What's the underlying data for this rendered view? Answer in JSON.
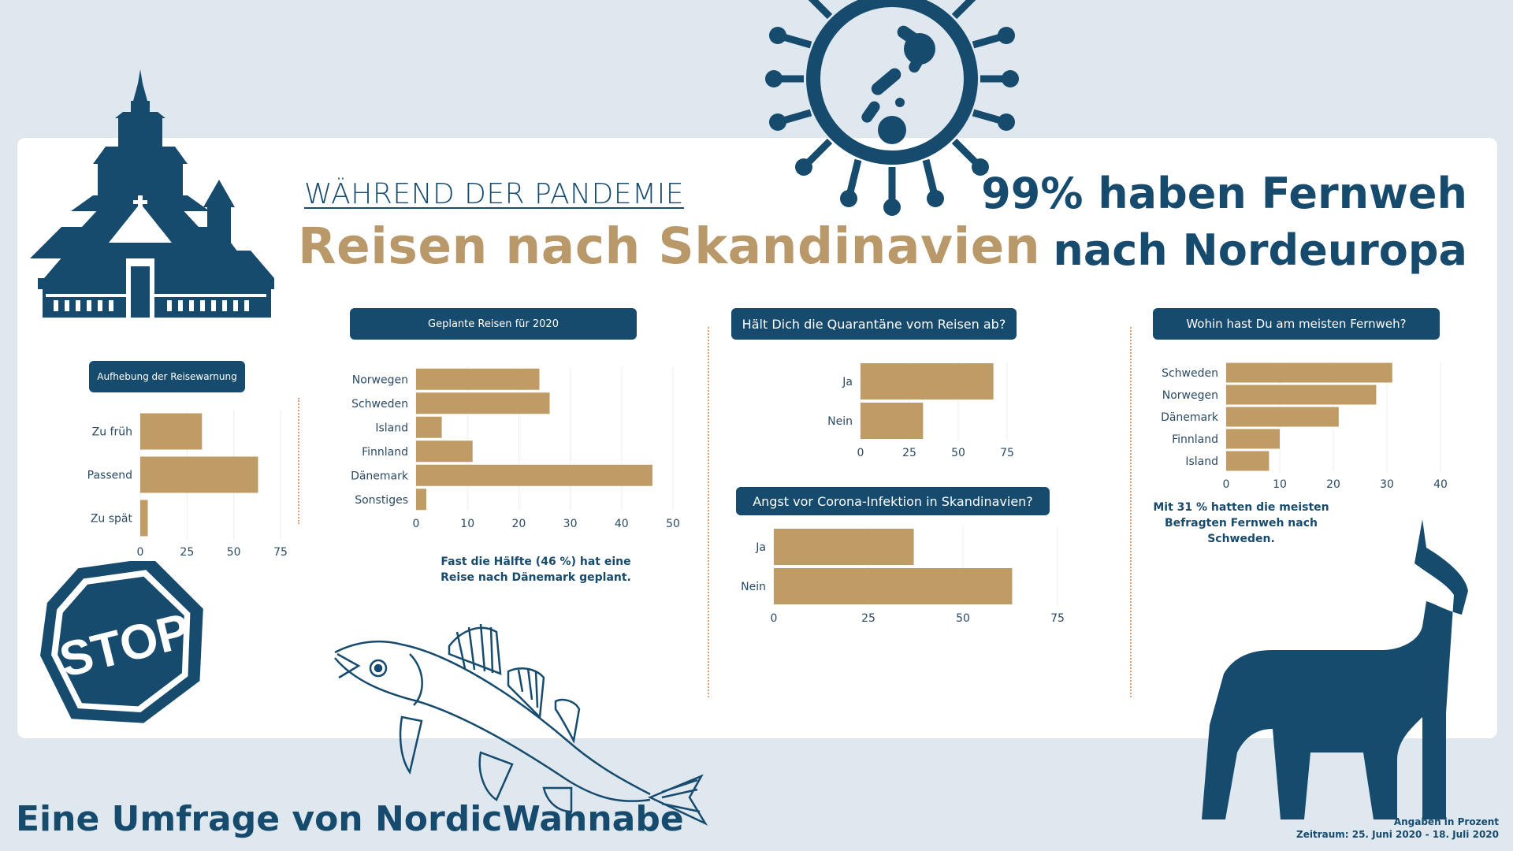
{
  "header": {
    "subtitle": "WÄHREND DER PANDEMIE",
    "title": "Reisen nach Skandinavien",
    "headline_line1": "99% haben Fernweh",
    "headline_line2": "nach Nordeuropa"
  },
  "footer": {
    "credit": "Eine Umfrage von NordicWannabe",
    "unit_note": "Angaben in Prozent",
    "period": "Zeitraum: 25. Juni 2020 - 18. Juli 2020"
  },
  "notes": {
    "geplante_line1": "Fast die Hälfte (46 %) hat eine",
    "geplante_line2": "Reise nach Dänemark geplant.",
    "fernweh_line1": "Mit 31 % hatten die meisten",
    "fernweh_line2": "Befragten Fernweh nach",
    "fernweh_line3": "Schweden."
  },
  "icons": {
    "stave_church": "stave-church-icon",
    "virus": "virus-icon",
    "stop": "stop-sign-icon",
    "fish": "fish-icon",
    "horse": "dala-horse-icon",
    "stop_text": "STOP"
  },
  "colors": {
    "background": "#dfe7ef",
    "navy": "#174b6e",
    "bar": "#bf9b66",
    "title_gold": "#b9986a",
    "divider": "#e3a07a"
  },
  "chart_data": [
    {
      "id": "aufhebung",
      "type": "bar",
      "orientation": "horizontal",
      "title": "Aufhebung der Reisewarnung",
      "categories": [
        "Zu früh",
        "Passend",
        "Zu spät"
      ],
      "values": [
        33,
        63,
        4
      ],
      "xlim": [
        0,
        75
      ],
      "ticks": [
        0,
        25,
        50,
        75
      ]
    },
    {
      "id": "geplante",
      "type": "bar",
      "orientation": "horizontal",
      "title": "Geplante Reisen für 2020",
      "categories": [
        "Norwegen",
        "Schweden",
        "Island",
        "Finnland",
        "Dänemark",
        "Sonstiges"
      ],
      "values": [
        24,
        26,
        5,
        11,
        46,
        2
      ],
      "xlim": [
        0,
        50
      ],
      "ticks": [
        0,
        10,
        20,
        30,
        40,
        50
      ]
    },
    {
      "id": "quarantaene",
      "type": "bar",
      "orientation": "horizontal",
      "title": "Hält Dich die Quarantäne vom Reisen ab?",
      "categories": [
        "Ja",
        "Nein"
      ],
      "values": [
        68,
        32
      ],
      "xlim": [
        0,
        75
      ],
      "ticks": [
        0,
        25,
        50,
        75
      ]
    },
    {
      "id": "angst",
      "type": "bar",
      "orientation": "horizontal",
      "title": "Angst vor Corona-Infektion in Skandinavien?",
      "categories": [
        "Ja",
        "Nein"
      ],
      "values": [
        37,
        63
      ],
      "xlim": [
        0,
        75
      ],
      "ticks": [
        0,
        25,
        50,
        75
      ]
    },
    {
      "id": "fernweh",
      "type": "bar",
      "orientation": "horizontal",
      "title": "Wohin hast Du am meisten Fernweh?",
      "categories": [
        "Schweden",
        "Norwegen",
        "Dänemark",
        "Finnland",
        "Island"
      ],
      "values": [
        31,
        28,
        21,
        10,
        8
      ],
      "xlim": [
        0,
        40
      ],
      "ticks": [
        0,
        10,
        20,
        30,
        40
      ]
    }
  ]
}
